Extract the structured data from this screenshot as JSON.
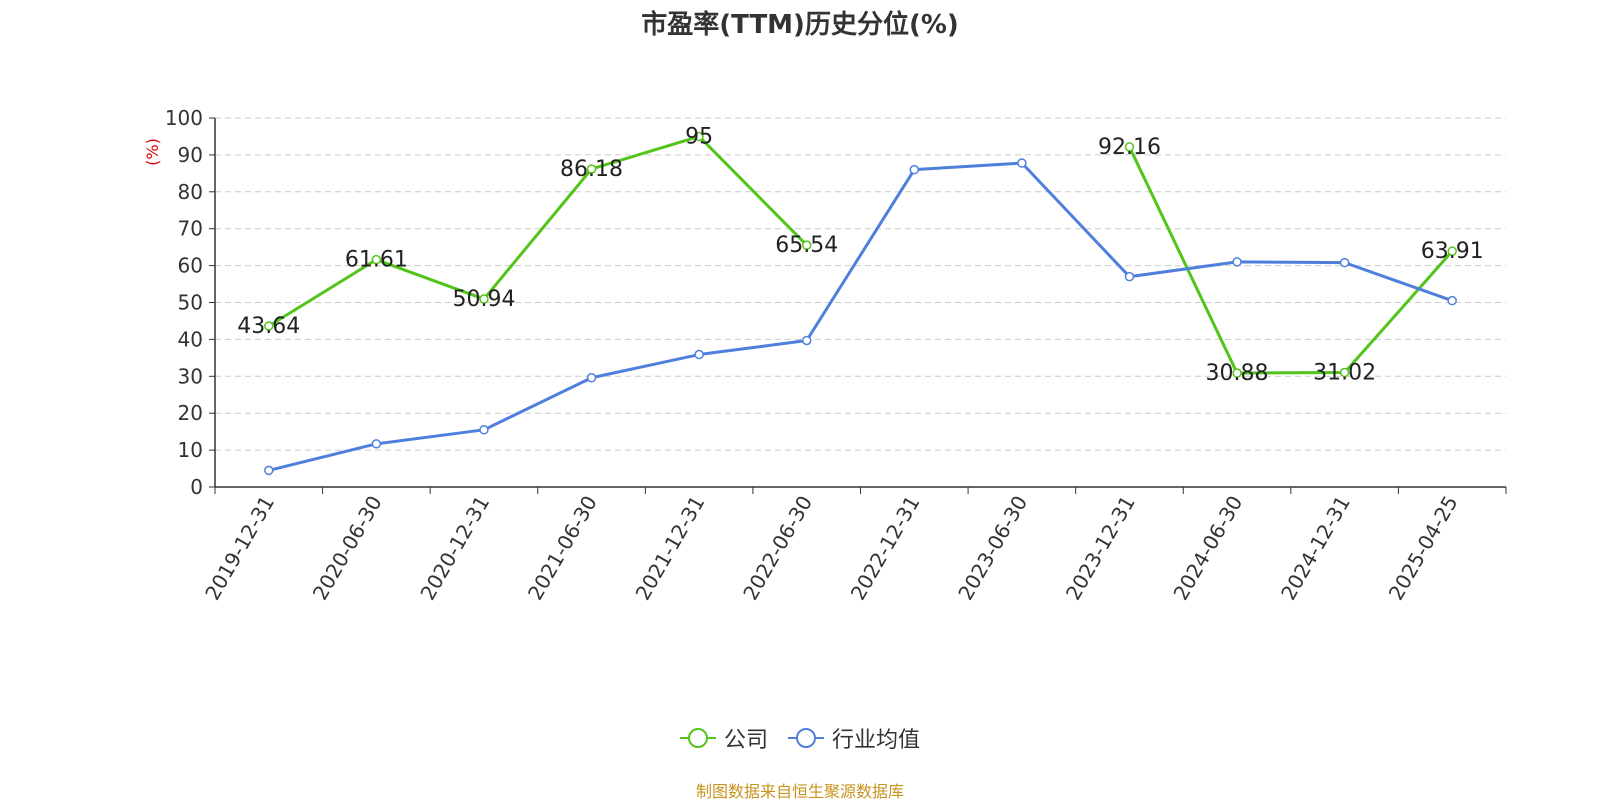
{
  "chart_data": {
    "type": "line",
    "title": "市盈率(TTM)历史分位(%)",
    "ylabel": "(%)",
    "xlabel": "",
    "ylim": [
      0,
      100
    ],
    "yticks": [
      0,
      10,
      20,
      30,
      40,
      50,
      60,
      70,
      80,
      90,
      100
    ],
    "grid": true,
    "legend_position": "bottom-center",
    "categories": [
      "2019-12-31",
      "2020-06-30",
      "2020-12-31",
      "2021-06-30",
      "2021-12-31",
      "2022-06-30",
      "2022-12-31",
      "2023-06-30",
      "2023-12-31",
      "2024-06-30",
      "2024-12-31",
      "2025-04-25"
    ],
    "series": [
      {
        "name": "公司",
        "color": "#52c41a",
        "values": [
          43.64,
          61.61,
          50.94,
          86.18,
          95,
          65.54,
          null,
          null,
          92.16,
          30.88,
          31.02,
          63.91
        ],
        "labels": [
          "43.64",
          "61.61",
          "50.94",
          "86.18",
          "95",
          "65.54",
          "",
          "",
          "92.16",
          "30.88",
          "31.02",
          "63.91"
        ]
      },
      {
        "name": "行业均值",
        "color": "#4e7fdd",
        "values": [
          4.5,
          11.7,
          15.5,
          29.6,
          35.9,
          39.7,
          86.0,
          87.8,
          57.0,
          61.0,
          60.8,
          50.5
        ]
      }
    ]
  },
  "source": "制图数据来自恒生聚源数据库"
}
